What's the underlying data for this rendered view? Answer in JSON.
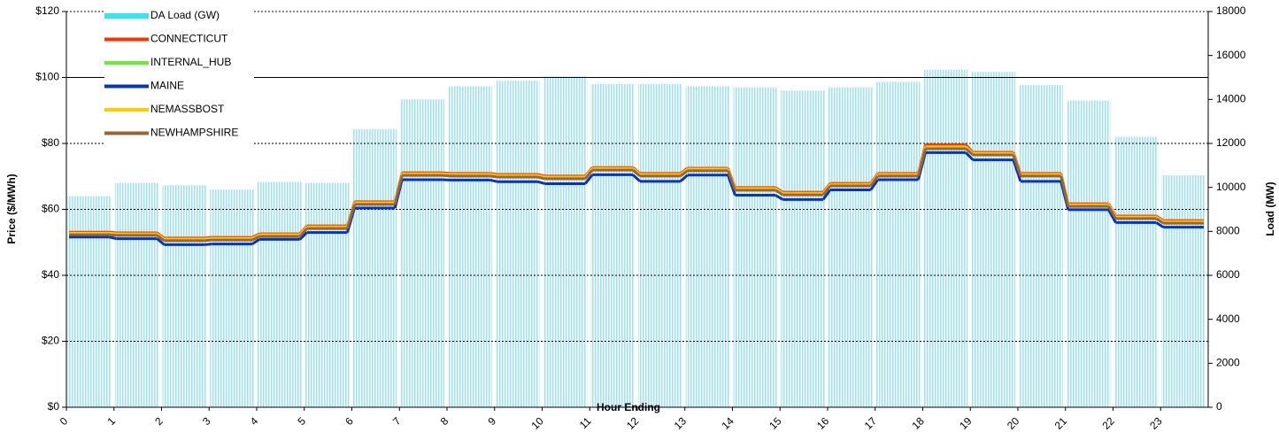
{
  "chart_data": {
    "type": "line",
    "x_label": "Hour Ending",
    "y_label": "Price ($/MWh)",
    "y2_label": "Load (MW)",
    "categories": [
      "0",
      "1",
      "2",
      "3",
      "4",
      "5",
      "6",
      "7",
      "8",
      "9",
      "10",
      "11",
      "12",
      "13",
      "14",
      "15",
      "16",
      "17",
      "18",
      "19",
      "20",
      "21",
      "22",
      "23"
    ],
    "ylim": [
      0,
      120
    ],
    "yticks": [
      {
        "value": 0,
        "label": "$0"
      },
      {
        "value": 20,
        "label": "$20"
      },
      {
        "value": 40,
        "label": "$40"
      },
      {
        "value": 60,
        "label": "$60"
      },
      {
        "value": 80,
        "label": "$80"
      },
      {
        "value": 100,
        "label": "$100"
      },
      {
        "value": 120,
        "label": "$120"
      }
    ],
    "y2lim": [
      0,
      18000
    ],
    "y2ticks": [
      0,
      2000,
      4000,
      6000,
      8000,
      10000,
      12000,
      14000,
      16000,
      18000
    ],
    "grid": true,
    "legend": "top-left",
    "series": [
      {
        "name": "DA Load (GW)",
        "type": "bar",
        "axis": "y2",
        "color": "#7fdcf0",
        "values": [
          9600,
          10200,
          10100,
          9900,
          10250,
          10200,
          12650,
          14000,
          14600,
          14850,
          15050,
          14700,
          14700,
          14600,
          14550,
          14400,
          14550,
          14800,
          15350,
          15250,
          14650,
          13950,
          12300,
          10550
        ]
      },
      {
        "name": "CONNECTICUT",
        "color": "#ff3300",
        "values": [
          53.1,
          52.9,
          51.3,
          51.5,
          52.6,
          55.0,
          62.3,
          71.1,
          70.9,
          70.6,
          70.1,
          72.7,
          70.9,
          72.5,
          66.6,
          65.2,
          67.9,
          70.9,
          79.6,
          77.3,
          70.9,
          61.7,
          58.0,
          56.6
        ]
      },
      {
        "name": "INTERNAL_HUB",
        "color": "#66ee33",
        "values": [
          52.6,
          52.4,
          50.8,
          51.0,
          52.1,
          54.5,
          61.8,
          70.6,
          70.4,
          70.1,
          69.6,
          72.2,
          70.4,
          72.0,
          66.1,
          64.7,
          67.4,
          70.4,
          78.7,
          76.8,
          70.4,
          61.2,
          57.5,
          56.1
        ]
      },
      {
        "name": "MAINE",
        "color": "#0033cc",
        "values": [
          51.6,
          51.1,
          49.3,
          49.5,
          50.9,
          53.0,
          60.4,
          69.0,
          68.9,
          68.4,
          67.8,
          70.5,
          68.5,
          70.4,
          64.3,
          63.0,
          65.9,
          69.0,
          77.2,
          75.0,
          68.5,
          59.9,
          56.0,
          54.6
        ]
      },
      {
        "name": "NEMASSBOST",
        "color": "#ffcc00",
        "values": [
          52.8,
          52.6,
          51.0,
          51.2,
          52.3,
          54.7,
          62.0,
          70.8,
          70.6,
          70.3,
          69.8,
          72.4,
          70.6,
          72.2,
          66.3,
          64.9,
          67.6,
          70.6,
          79.0,
          77.0,
          70.6,
          61.4,
          57.7,
          56.3
        ]
      },
      {
        "name": "NEWHAMPSHIRE",
        "color": "#996633",
        "values": [
          52.3,
          52.1,
          50.5,
          50.7,
          51.8,
          54.2,
          61.5,
          70.3,
          70.1,
          69.8,
          69.3,
          71.9,
          70.1,
          71.7,
          65.8,
          64.4,
          67.1,
          70.1,
          78.4,
          76.5,
          70.1,
          60.9,
          57.2,
          55.8
        ]
      }
    ]
  }
}
